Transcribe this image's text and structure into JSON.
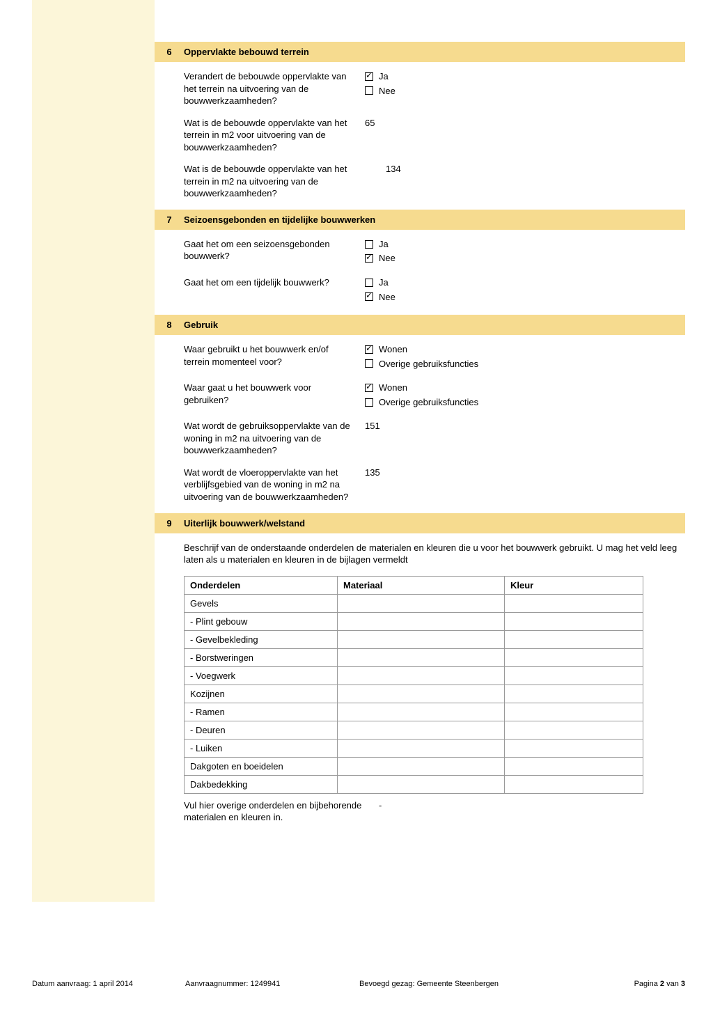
{
  "colors": {
    "sidebar_bg": "#fcf6d9",
    "header_bg": "#f6db8f",
    "border": "#999999"
  },
  "sections": {
    "s6": {
      "num": "6",
      "title": "Oppervlakte bebouwd terrein",
      "q1": {
        "label": "Verandert de bebouwde oppervlakte van het terrein na uitvoering van de bouwwerkzaamheden?",
        "opts": {
          "ja": "Ja",
          "nee": "Nee"
        }
      },
      "q2": {
        "label": "Wat is de bebouwde oppervlakte van het terrein in m2 voor uitvoering van de bouwwerkzaamheden?",
        "value": "65"
      },
      "q3": {
        "label": "Wat is de bebouwde oppervlakte van het terrein in m2 na uitvoering van de bouwwerkzaamheden?",
        "value": "134"
      }
    },
    "s7": {
      "num": "7",
      "title": "Seizoensgebonden en tijdelijke bouwwerken",
      "q1": {
        "label": "Gaat het om een seizoensgebonden bouwwerk?",
        "opts": {
          "ja": "Ja",
          "nee": "Nee"
        }
      },
      "q2": {
        "label": "Gaat het om een tijdelijk bouwwerk?",
        "opts": {
          "ja": "Ja",
          "nee": "Nee"
        }
      }
    },
    "s8": {
      "num": "8",
      "title": "Gebruik",
      "q1": {
        "label": "Waar gebruikt u het bouwwerk en/of terrein momenteel voor?",
        "opts": {
          "wonen": "Wonen",
          "overig": "Overige gebruiksfuncties"
        }
      },
      "q2": {
        "label": "Waar gaat u het bouwwerk voor gebruiken?",
        "opts": {
          "wonen": "Wonen",
          "overig": "Overige gebruiksfuncties"
        }
      },
      "q3": {
        "label": "Wat wordt de gebruiksoppervlakte van de woning in m2 na uitvoering van de bouwwerkzaamheden?",
        "value": "151"
      },
      "q4": {
        "label": "Wat wordt de vloeroppervlakte van het verblijfsgebied van de woning in m2 na uitvoering van de bouwwerkzaamheden?",
        "value": "135"
      }
    },
    "s9": {
      "num": "9",
      "title": "Uiterlijk bouwwerk/welstand",
      "desc": "Beschrijf van de onderstaande onderdelen de materialen en kleuren die u voor het bouwwerk gebruikt. U mag het veld leeg laten als u materialen en kleuren in de bijlagen vermeldt",
      "table": {
        "headers": {
          "c1": "Onderdelen",
          "c2": "Materiaal",
          "c3": "Kleur"
        },
        "rows": [
          "Gevels",
          "- Plint gebouw",
          "- Gevelbekleding",
          "- Borstweringen",
          "- Voegwerk",
          "Kozijnen",
          "- Ramen",
          "- Deuren",
          "- Luiken",
          "Dakgoten en boeidelen",
          "Dakbedekking"
        ]
      },
      "extra": {
        "label": "Vul hier overige onderdelen en bijbehorende materialen en kleuren in.",
        "value": "-"
      }
    }
  },
  "footer": {
    "datum": "Datum aanvraag: 1 april 2014",
    "aanvraag": "Aanvraagnummer: 1249941",
    "gezag": "Bevoegd gezag: Gemeente Steenbergen",
    "pagina_pre": "Pagina ",
    "pagina_cur": "2",
    "pagina_mid": " van ",
    "pagina_tot": "3"
  }
}
